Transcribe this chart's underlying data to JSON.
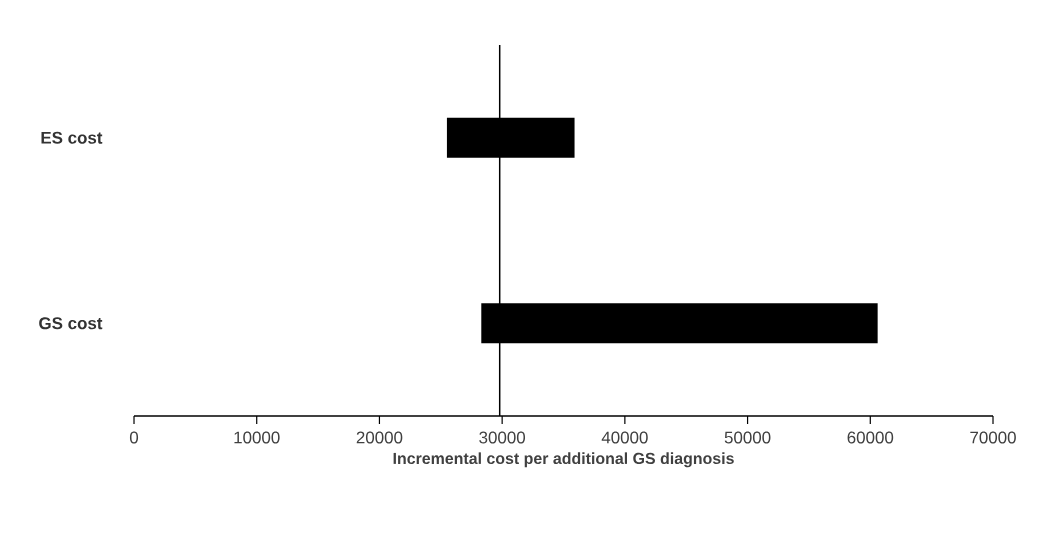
{
  "chart_data": {
    "type": "bar",
    "orientation": "horizontal",
    "categories": [
      "ES cost",
      "GS cost"
    ],
    "base": [
      25500,
      28300
    ],
    "values": [
      10400,
      32300
    ],
    "color": "#000000",
    "xlabel": "Incremental cost per additional GS diagnosis",
    "xlim": [
      0,
      70000
    ],
    "xticks": [
      0,
      10000,
      20000,
      30000,
      40000,
      50000,
      60000,
      70000
    ],
    "ref_lines": [
      {
        "axis": "x",
        "value": 29800,
        "color": "#000000"
      }
    ]
  }
}
